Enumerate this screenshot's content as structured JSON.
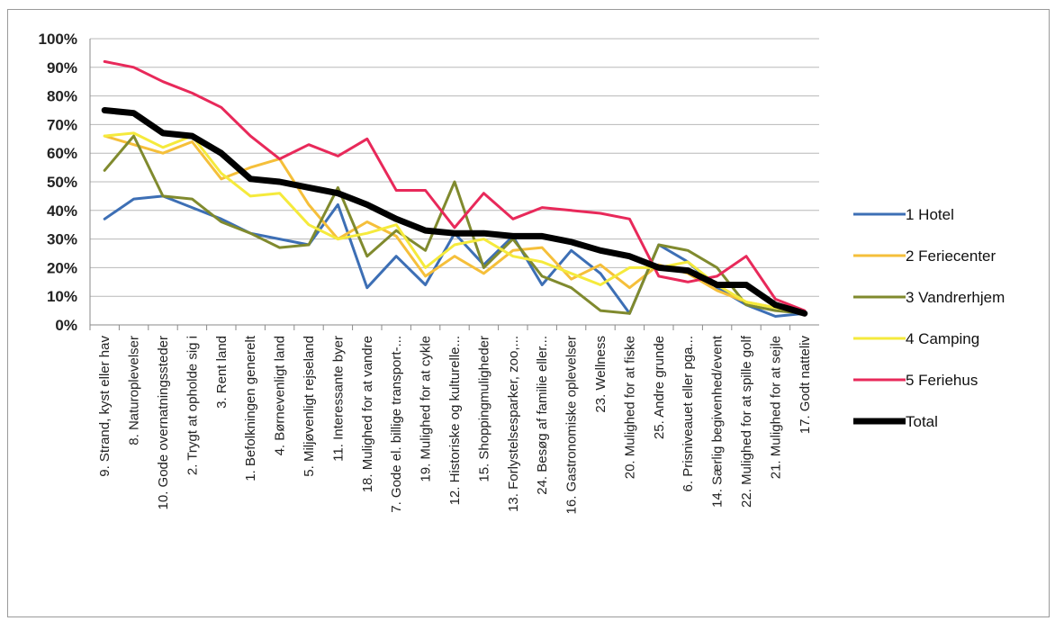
{
  "chart_data": {
    "type": "line",
    "ylim": [
      0,
      100
    ],
    "yticks": [
      "0%",
      "10%",
      "20%",
      "30%",
      "40%",
      "50%",
      "60%",
      "70%",
      "80%",
      "90%",
      "100%"
    ],
    "grid": true,
    "legend_position": "right",
    "categories": [
      "9. Strand, kyst eller hav",
      "8. Naturoplevelser",
      "10. Gode overnatningssteder",
      "2. Trygt at opholde sig i",
      "3. Rent land",
      "1. Befolkningen generelt",
      "4. Børnevenligt land",
      "5. Miljøvenligt rejseland",
      "11. Interessante byer",
      "18. Mulighed for at vandre",
      "7. Gode el. billige transport-...",
      "19. Mulighed for at cykle",
      "12. Historiske og kulturelle...",
      "15. Shoppingmuligheder",
      "13. Forlystelsesparker, zoo,...",
      "24. Besøg af familie eller...",
      "16. Gastronomiske oplevelser",
      "23. Wellness",
      "20. Mulighed for at fiske",
      "25. Andre grunde",
      "6. Prisniveauet eller pga...",
      "14. Særlig begivenhed/event",
      "22. Mulighed for at spille golf",
      "21. Mulighed for at sejle",
      "17. Godt natteliv"
    ],
    "series": [
      {
        "name": "1 Hotel",
        "color": "#3d6fb5",
        "width": 3,
        "values": [
          37,
          44,
          45,
          41,
          37,
          32,
          30,
          28,
          42,
          13,
          24,
          14,
          32,
          21,
          31,
          14,
          26,
          18,
          4,
          28,
          22,
          13,
          7,
          3,
          4
        ]
      },
      {
        "name": "2 Feriecenter",
        "color": "#f5bf3a",
        "width": 3,
        "values": [
          66,
          63,
          60,
          64,
          51,
          55,
          58,
          42,
          30,
          36,
          31,
          17,
          24,
          18,
          26,
          27,
          16,
          21,
          13,
          21,
          18,
          12,
          8,
          6,
          4
        ]
      },
      {
        "name": "3 Vandrerhjem",
        "color": "#808a2e",
        "width": 3,
        "values": [
          54,
          66,
          45,
          44,
          36,
          32,
          27,
          28,
          48,
          24,
          33,
          26,
          50,
          20,
          30,
          17,
          13,
          5,
          4,
          28,
          26,
          20,
          7,
          5,
          4
        ]
      },
      {
        "name": "4 Camping",
        "color": "#f5ea3c",
        "width": 3,
        "values": [
          66,
          67,
          62,
          66,
          53,
          45,
          46,
          35,
          30,
          32,
          35,
          20,
          28,
          30,
          24,
          22,
          18,
          14,
          20,
          20,
          22,
          14,
          8,
          6,
          4
        ]
      },
      {
        "name": "5 Feriehus",
        "color": "#e8295a",
        "width": 3,
        "values": [
          92,
          90,
          85,
          81,
          76,
          66,
          58,
          63,
          59,
          65,
          47,
          47,
          34,
          46,
          37,
          41,
          40,
          39,
          37,
          17,
          15,
          17,
          24,
          9,
          5
        ]
      },
      {
        "name": "Total",
        "color": "#000000",
        "width": 7,
        "values": [
          75,
          74,
          67,
          66,
          60,
          51,
          50,
          48,
          46,
          42,
          37,
          33,
          32,
          32,
          31,
          31,
          29,
          26,
          24,
          20,
          19,
          14,
          14,
          7,
          4
        ]
      }
    ]
  }
}
